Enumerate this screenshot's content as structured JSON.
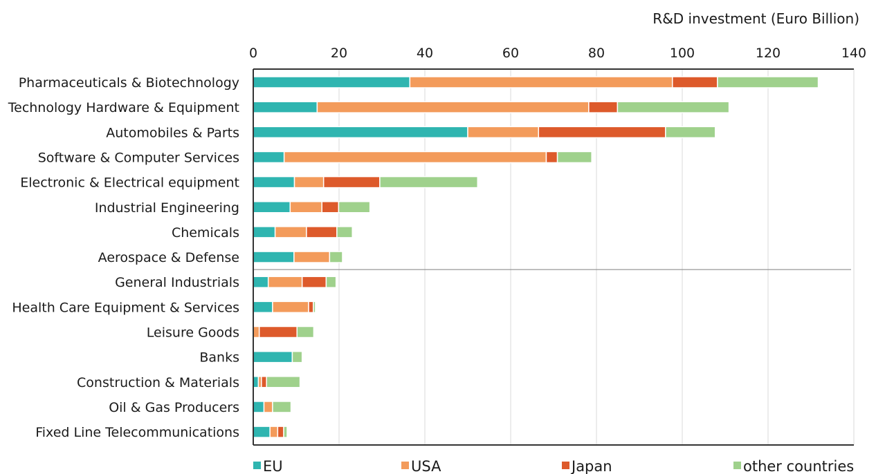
{
  "chart_data": {
    "type": "bar",
    "orientation": "horizontal",
    "stacked": true,
    "title": "R&D investment (Euro Billion)",
    "xlim": [
      0,
      140
    ],
    "xticks": [
      "0",
      "20",
      "40",
      "60",
      "80",
      "100",
      "120",
      "140"
    ],
    "grid": true,
    "legend_position": "bottom",
    "categories": [
      "Pharmaceuticals & Biotechnology",
      "Technology Hardware & Equipment",
      "Automobiles & Parts",
      "Software & Computer Services",
      "Electronic & Electrical equipment",
      "Industrial Engineering",
      "Chemicals",
      "Aerospace & Defense",
      "General Industrials",
      "Health Care Equipment & Services",
      "Leisure Goods",
      "Banks",
      "Construction & Materials",
      "Oil & Gas Producers",
      "Fixed Line Telecommunications"
    ],
    "series": [
      {
        "name": "EU",
        "color": "#2fb5b0",
        "values": [
          36.5,
          14.9,
          50.0,
          7.2,
          9.6,
          8.6,
          5.1,
          9.5,
          3.5,
          4.5,
          0,
          9.1,
          1.2,
          2.5,
          3.9
        ]
      },
      {
        "name": "USA",
        "color": "#f39b5b",
        "values": [
          61.2,
          63.3,
          16.5,
          61.1,
          6.8,
          7.4,
          7.3,
          8.3,
          7.9,
          8.4,
          1.4,
          0,
          0.7,
          2.0,
          1.8
        ]
      },
      {
        "name": "Japan",
        "color": "#dd5a2b",
        "values": [
          10.5,
          6.7,
          29.6,
          2.6,
          13.1,
          3.9,
          7.1,
          0,
          5.6,
          1.1,
          8.8,
          0,
          1.2,
          0,
          1.4
        ]
      },
      {
        "name": "other countries",
        "color": "#9fd18c",
        "values": [
          23.5,
          26.0,
          11.6,
          8.0,
          22.8,
          7.3,
          3.6,
          3.0,
          2.3,
          0.5,
          3.9,
          2.3,
          7.8,
          4.3,
          0.8
        ]
      }
    ]
  }
}
